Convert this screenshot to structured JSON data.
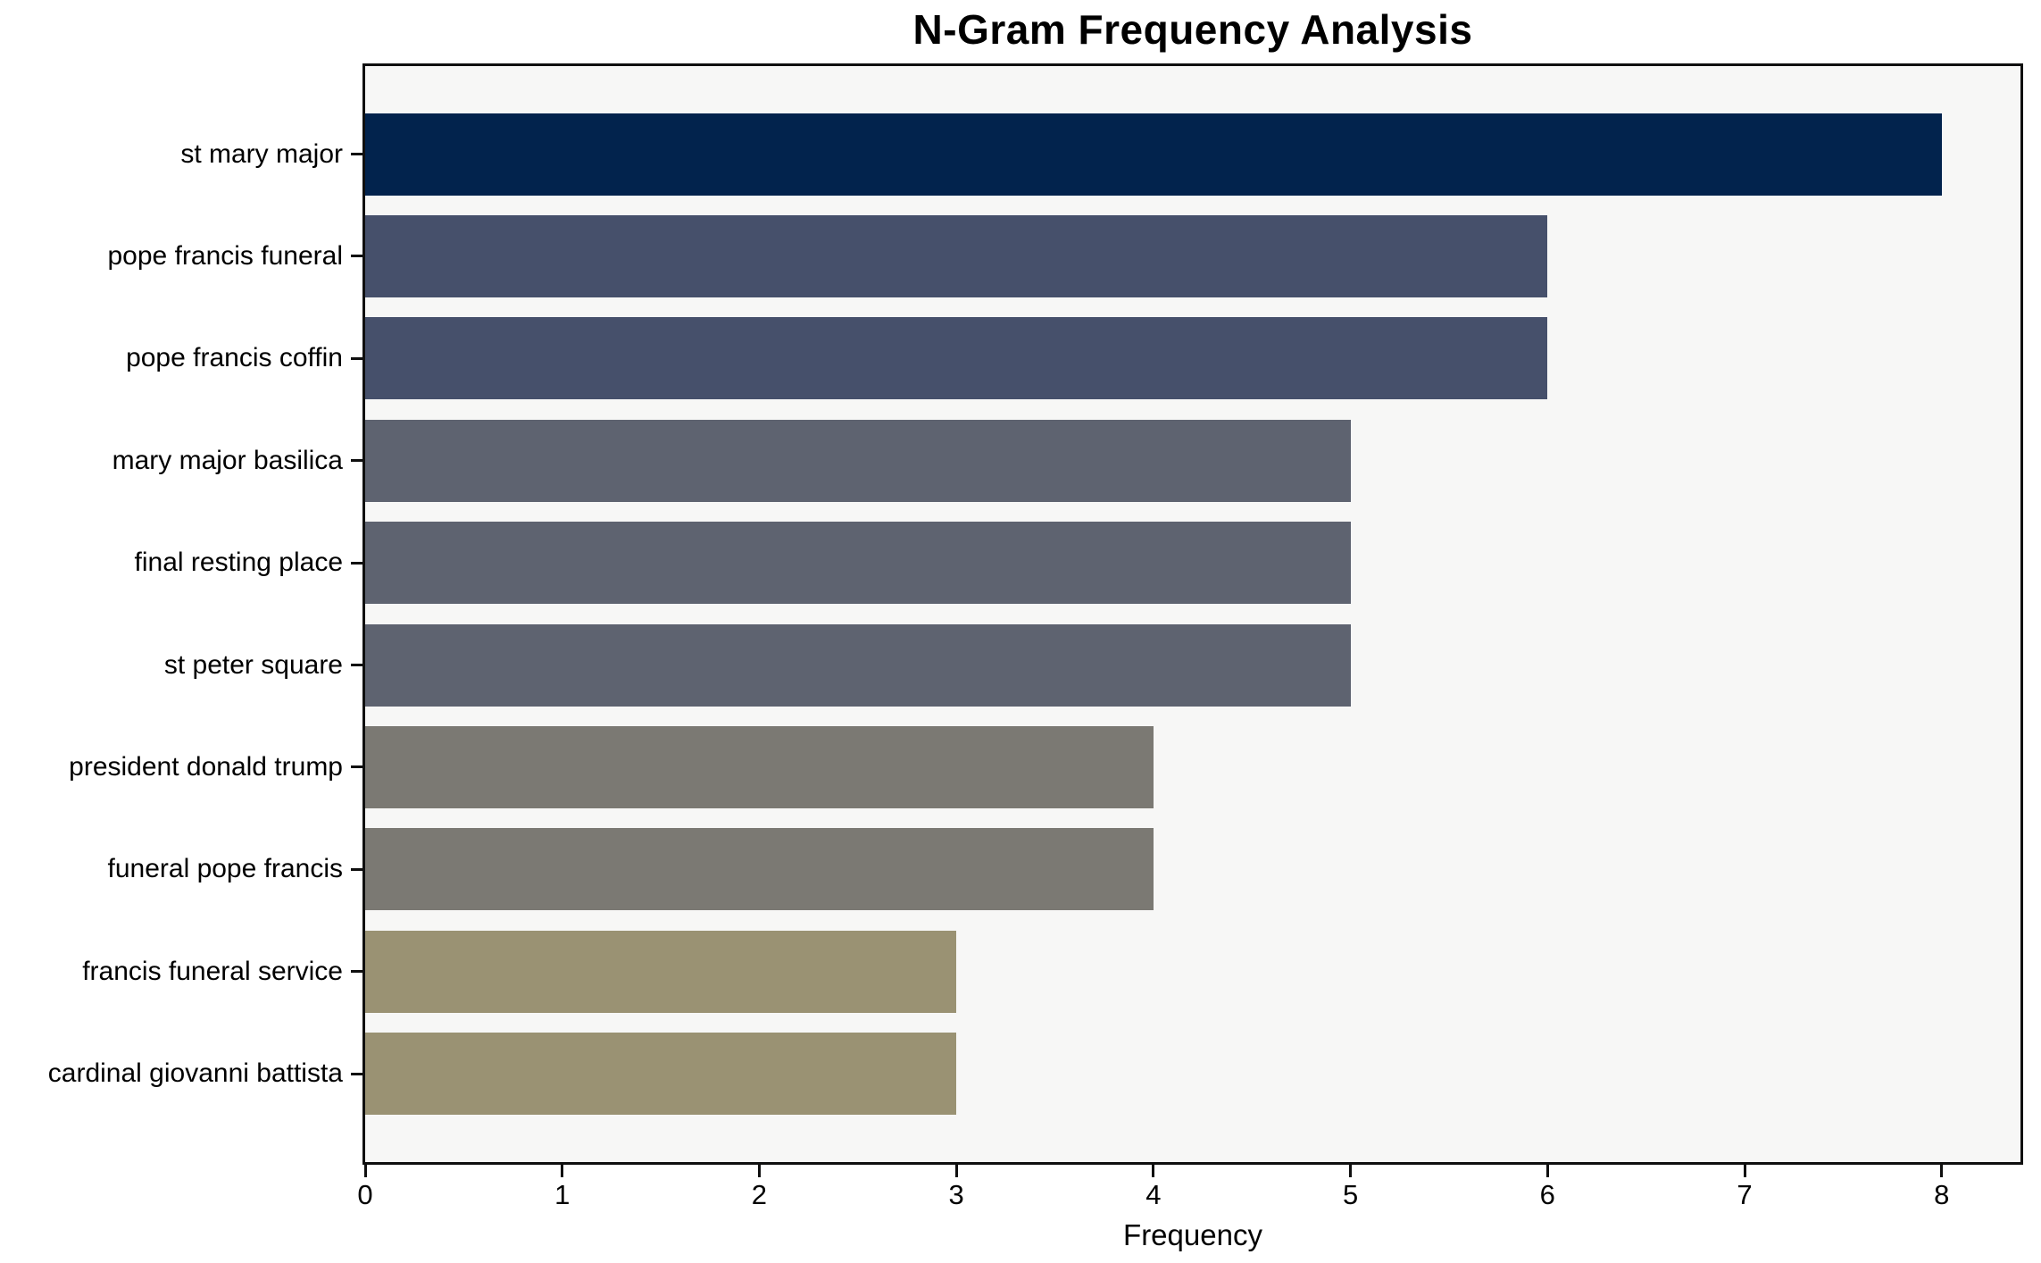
{
  "chart_data": {
    "type": "bar",
    "orientation": "horizontal",
    "title": "N-Gram Frequency Analysis",
    "xlabel": "Frequency",
    "ylabel": "",
    "categories": [
      "st mary major",
      "pope francis funeral",
      "pope francis coffin",
      "mary major basilica",
      "final resting place",
      "st peter square",
      "president donald trump",
      "funeral pope francis",
      "francis funeral service",
      "cardinal giovanni battista"
    ],
    "values": [
      8,
      6,
      6,
      5,
      5,
      5,
      4,
      4,
      3,
      3
    ],
    "bar_colors": [
      "#02234d",
      "#46506b",
      "#46506b",
      "#5e6370",
      "#5e6370",
      "#5e6370",
      "#7b7973",
      "#7b7973",
      "#9a9273",
      "#9a9273"
    ],
    "xlim": [
      0,
      8.4
    ],
    "xticks": [
      0,
      1,
      2,
      3,
      4,
      5,
      6,
      7,
      8
    ],
    "grid": false,
    "legend": null,
    "plot_background": "#f7f7f6",
    "figure_background": "#ffffff",
    "spine_color": "#0f0f0f"
  }
}
